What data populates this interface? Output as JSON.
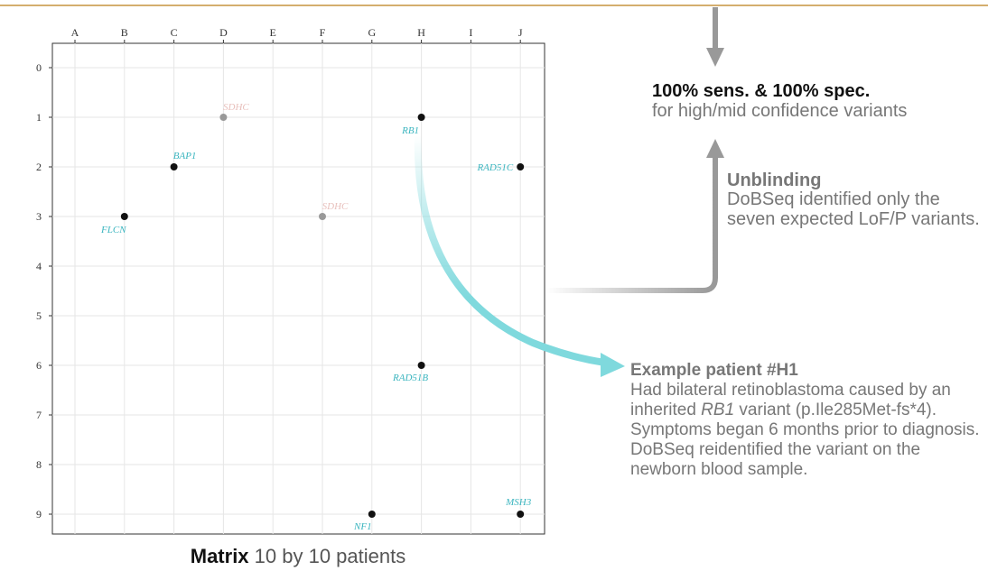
{
  "colors": {
    "top_rule": "#d4ae6e",
    "arrow_gray": "#999999",
    "arrow_teal": "#7fd9dd",
    "gene_teal": "#3bb5bf",
    "gene_faded": "#e8c0bc",
    "point_dark": "#111111",
    "point_faded": "#999999",
    "text_gray": "#777777"
  },
  "chart_data": {
    "type": "scatter",
    "x_categories": [
      "A",
      "B",
      "C",
      "D",
      "E",
      "F",
      "G",
      "H",
      "I",
      "J"
    ],
    "y_ticks": [
      "0",
      "1",
      "2",
      "3",
      "4",
      "5",
      "6",
      "7",
      "8",
      "9"
    ],
    "ylim": [
      0,
      9
    ],
    "grid": true,
    "points": [
      {
        "x": "B",
        "y": 3,
        "gene": "FLCN",
        "faded": false
      },
      {
        "x": "C",
        "y": 2,
        "gene": "BAP1",
        "faded": false
      },
      {
        "x": "D",
        "y": 1,
        "gene": "SDHC",
        "faded": true
      },
      {
        "x": "F",
        "y": 3,
        "gene": "SDHC",
        "faded": true
      },
      {
        "x": "H",
        "y": 1,
        "gene": "RB1",
        "faded": false
      },
      {
        "x": "J",
        "y": 2,
        "gene": "RAD51C",
        "faded": false
      },
      {
        "x": "H",
        "y": 6,
        "gene": "RAD51B",
        "faded": false
      },
      {
        "x": "G",
        "y": 9,
        "gene": "NF1",
        "faded": false
      },
      {
        "x": "J",
        "y": 9,
        "gene": "MSH3",
        "faded": false
      }
    ]
  },
  "caption": {
    "bold": "Matrix",
    "rest": " 10 by 10 patients"
  },
  "result": {
    "title": "100% sens. & 100% spec.",
    "subtitle": "for high/mid confidence variants"
  },
  "unblinding": {
    "title": "Unblinding",
    "body": "DoBSeq identified only the seven expected LoF/P variants."
  },
  "patient": {
    "title": "Example patient #H1",
    "body_before": "Had bilateral retinoblastoma caused by an inherited ",
    "gene": "RB1",
    "body_after": " variant (p.Ile285Met-fs*4). Symptoms began 6 months prior to diagnosis. DoBSeq reidentified the variant on the newborn blood sample."
  }
}
